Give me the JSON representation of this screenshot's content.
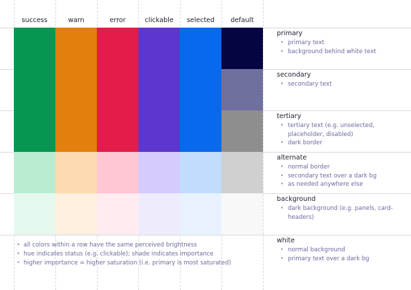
{
  "columns": [
    {
      "label": "success"
    },
    {
      "label": "warn"
    },
    {
      "label": "error"
    },
    {
      "label": "clickable"
    },
    {
      "label": "selected"
    },
    {
      "label": "default"
    }
  ],
  "palette": [
    [
      "#079652",
      "#e27f0d",
      "#e31c4a",
      "#5d36cf",
      "#0969ed",
      "#050541"
    ],
    [
      "#079652",
      "#e27f0d",
      "#e31c4a",
      "#5d36cf",
      "#0969ed",
      "#70709f"
    ],
    [
      "#079652",
      "#e27f0d",
      "#e31c4a",
      "#5d36cf",
      "#0969ed",
      "#8e8e8e"
    ],
    [
      "#b8edd1",
      "#fcdbb2",
      "#ffc6d3",
      "#d5cbfd",
      "#c2dcfe",
      "#d0d0d0"
    ],
    [
      "#e6f9ee",
      "#fff0e0",
      "#ffecf0",
      "#eeebfc",
      "#e8f2fe",
      "#f8f8f8"
    ]
  ],
  "rows": [
    {
      "title": "primary",
      "items": [
        "primary text",
        "background behind white text"
      ]
    },
    {
      "title": "secondary",
      "items": [
        "secondary text"
      ]
    },
    {
      "title": "tertiary",
      "items": [
        "tertiary text (e.g. unselected, placeholder, disabled)",
        "dark border"
      ]
    },
    {
      "title": "alternate",
      "items": [
        "normal border",
        "secondary text over a dark bg",
        "as needed anywhere else"
      ]
    },
    {
      "title": "background",
      "items": [
        "dark background (e.g. panels, card-headers)"
      ]
    },
    {
      "title": "white",
      "items": [
        "normal background",
        "primary text over a dark bg"
      ]
    }
  ],
  "notes": [
    "all colors within a row have the same perceived brightness",
    "hue indicates status (e.g. clickable); shade indicates importance",
    "higher importance = higher saturation (i.e. primary is most saturated)"
  ]
}
